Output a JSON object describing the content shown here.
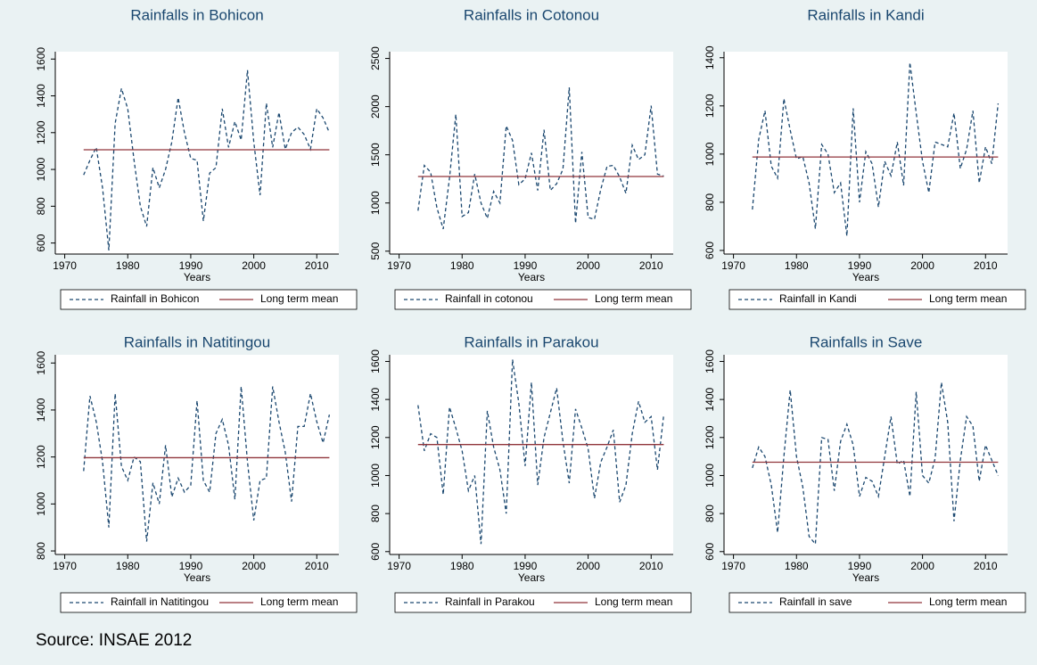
{
  "chart_data": [
    {
      "type": "line",
      "title": "Rainfalls in Bohicon",
      "xlabel": "Years",
      "x": [
        1973,
        1974,
        1975,
        1976,
        1977,
        1978,
        1979,
        1980,
        1981,
        1982,
        1983,
        1984,
        1985,
        1986,
        1987,
        1988,
        1989,
        1990,
        1991,
        1992,
        1993,
        1994,
        1995,
        1996,
        1997,
        1998,
        1999,
        2000,
        2001,
        2002,
        2003,
        2004,
        2005,
        2006,
        2007,
        2008,
        2009,
        2010,
        2011,
        2012
      ],
      "series": [
        {
          "name": "Rainfall in Bohicon",
          "color": "#1a476f",
          "style": "dashed",
          "values": [
            970,
            1050,
            1120,
            900,
            560,
            1250,
            1440,
            1330,
            1050,
            800,
            690,
            1010,
            900,
            1000,
            1150,
            1390,
            1200,
            1060,
            1050,
            720,
            980,
            1010,
            1330,
            1120,
            1260,
            1160,
            1540,
            1150,
            860,
            1360,
            1120,
            1310,
            1110,
            1200,
            1230,
            1190,
            1110,
            1330,
            1280,
            1200
          ]
        },
        {
          "name": "Long term mean",
          "color": "#90353b",
          "style": "solid",
          "values": [
            1107,
            1107,
            1107,
            1107,
            1107,
            1107,
            1107,
            1107,
            1107,
            1107,
            1107,
            1107,
            1107,
            1107,
            1107,
            1107,
            1107,
            1107,
            1107,
            1107,
            1107,
            1107,
            1107,
            1107,
            1107,
            1107,
            1107,
            1107,
            1107,
            1107,
            1107,
            1107,
            1107,
            1107,
            1107,
            1107,
            1107,
            1107,
            1107,
            1107
          ]
        }
      ],
      "xlim": [
        1968.5,
        2013.5
      ],
      "xticks": [
        1970,
        1980,
        1990,
        2000,
        2010
      ],
      "ylim": [
        540,
        1640
      ],
      "yticks": [
        600,
        800,
        1000,
        1200,
        1400,
        1600
      ]
    },
    {
      "type": "line",
      "title": "Rainfalls in Cotonou",
      "xlabel": "Years",
      "x": [
        1973,
        1974,
        1975,
        1976,
        1977,
        1978,
        1979,
        1980,
        1981,
        1982,
        1983,
        1984,
        1985,
        1986,
        1987,
        1988,
        1989,
        1990,
        1991,
        1992,
        1993,
        1994,
        1995,
        1996,
        1997,
        1998,
        1999,
        2000,
        2001,
        2002,
        2003,
        2004,
        2005,
        2006,
        2007,
        2008,
        2009,
        2010,
        2011,
        2012
      ],
      "series": [
        {
          "name": "Rainfall in cotonou",
          "color": "#1a476f",
          "style": "dashed",
          "values": [
            920,
            1390,
            1320,
            950,
            730,
            1260,
            1920,
            860,
            900,
            1300,
            1000,
            840,
            1120,
            1000,
            1800,
            1650,
            1190,
            1250,
            1520,
            1130,
            1760,
            1130,
            1200,
            1350,
            2200,
            790,
            1530,
            850,
            830,
            1140,
            1380,
            1390,
            1270,
            1100,
            1600,
            1450,
            1500,
            2010,
            1300,
            1280
          ]
        },
        {
          "name": "Long term mean",
          "color": "#90353b",
          "style": "solid",
          "values": [
            1275,
            1275,
            1275,
            1275,
            1275,
            1275,
            1275,
            1275,
            1275,
            1275,
            1275,
            1275,
            1275,
            1275,
            1275,
            1275,
            1275,
            1275,
            1275,
            1275,
            1275,
            1275,
            1275,
            1275,
            1275,
            1275,
            1275,
            1275,
            1275,
            1275,
            1275,
            1275,
            1275,
            1275,
            1275,
            1275,
            1275,
            1275,
            1275,
            1275
          ]
        }
      ],
      "xlim": [
        1968.5,
        2013.5
      ],
      "xticks": [
        1970,
        1980,
        1990,
        2000,
        2010
      ],
      "ylim": [
        470,
        2570
      ],
      "yticks": [
        500,
        1000,
        1500,
        2000,
        2500
      ]
    },
    {
      "type": "line",
      "title": "Rainfalls in Kandi",
      "xlabel": "Years",
      "x": [
        1973,
        1974,
        1975,
        1976,
        1977,
        1978,
        1979,
        1980,
        1981,
        1982,
        1983,
        1984,
        1985,
        1986,
        1987,
        1988,
        1989,
        1990,
        1991,
        1992,
        1993,
        1994,
        1995,
        1996,
        1997,
        1998,
        1999,
        2000,
        2001,
        2002,
        2003,
        2004,
        2005,
        2006,
        2007,
        2008,
        2009,
        2010,
        2011,
        2012
      ],
      "series": [
        {
          "name": "Rainfall in Kandi",
          "color": "#1a476f",
          "style": "dashed",
          "values": [
            770,
            1060,
            1180,
            950,
            900,
            1230,
            1100,
            980,
            990,
            880,
            690,
            1040,
            1000,
            840,
            880,
            660,
            1190,
            800,
            1010,
            960,
            780,
            970,
            910,
            1050,
            870,
            1380,
            1170,
            970,
            840,
            1050,
            1040,
            1030,
            1170,
            940,
            1020,
            1180,
            880,
            1030,
            960,
            1210
          ]
        },
        {
          "name": "Long term mean",
          "color": "#90353b",
          "style": "solid",
          "values": [
            988,
            988,
            988,
            988,
            988,
            988,
            988,
            988,
            988,
            988,
            988,
            988,
            988,
            988,
            988,
            988,
            988,
            988,
            988,
            988,
            988,
            988,
            988,
            988,
            988,
            988,
            988,
            988,
            988,
            988,
            988,
            988,
            988,
            988,
            988,
            988,
            988,
            988,
            988,
            988
          ]
        }
      ],
      "xlim": [
        1968.5,
        2013.5
      ],
      "xticks": [
        1970,
        1980,
        1990,
        2000,
        2010
      ],
      "ylim": [
        585,
        1425
      ],
      "yticks": [
        600,
        800,
        1000,
        1200,
        1400
      ]
    },
    {
      "type": "line",
      "title": "Rainfalls in Natitingou",
      "xlabel": "Years",
      "x": [
        1973,
        1974,
        1975,
        1976,
        1977,
        1978,
        1979,
        1980,
        1981,
        1982,
        1983,
        1984,
        1985,
        1986,
        1987,
        1988,
        1989,
        1990,
        1991,
        1992,
        1993,
        1994,
        1995,
        1996,
        1997,
        1998,
        1999,
        2000,
        2001,
        2002,
        2003,
        2004,
        2005,
        2006,
        2007,
        2008,
        2009,
        2010,
        2011,
        2012
      ],
      "series": [
        {
          "name": "Rainfall in Natitingou",
          "color": "#1a476f",
          "style": "dashed",
          "values": [
            1140,
            1460,
            1350,
            1180,
            900,
            1470,
            1160,
            1100,
            1200,
            1180,
            840,
            1090,
            1000,
            1250,
            1030,
            1110,
            1050,
            1080,
            1440,
            1100,
            1050,
            1300,
            1360,
            1250,
            1020,
            1500,
            1180,
            930,
            1100,
            1110,
            1500,
            1350,
            1220,
            1010,
            1330,
            1330,
            1470,
            1350,
            1260,
            1380
          ]
        },
        {
          "name": "Long term mean",
          "color": "#90353b",
          "style": "solid",
          "values": [
            1197,
            1197,
            1197,
            1197,
            1197,
            1197,
            1197,
            1197,
            1197,
            1197,
            1197,
            1197,
            1197,
            1197,
            1197,
            1197,
            1197,
            1197,
            1197,
            1197,
            1197,
            1197,
            1197,
            1197,
            1197,
            1197,
            1197,
            1197,
            1197,
            1197,
            1197,
            1197,
            1197,
            1197,
            1197,
            1197,
            1197,
            1197,
            1197,
            1197
          ]
        }
      ],
      "xlim": [
        1968.5,
        2013.5
      ],
      "xticks": [
        1970,
        1980,
        1990,
        2000,
        2010
      ],
      "ylim": [
        785,
        1635
      ],
      "yticks": [
        800,
        1000,
        1200,
        1400,
        1600
      ]
    },
    {
      "type": "line",
      "title": "Rainfalls in Parakou",
      "xlabel": "Years",
      "x": [
        1973,
        1974,
        1975,
        1976,
        1977,
        1978,
        1979,
        1980,
        1981,
        1982,
        1983,
        1984,
        1985,
        1986,
        1987,
        1988,
        1989,
        1990,
        1991,
        1992,
        1993,
        1994,
        1995,
        1996,
        1997,
        1998,
        1999,
        2000,
        2001,
        2002,
        2003,
        2004,
        2005,
        2006,
        2007,
        2008,
        2009,
        2010,
        2011,
        2012
      ],
      "series": [
        {
          "name": "Rainfall in Parakou",
          "color": "#1a476f",
          "style": "dashed",
          "values": [
            1370,
            1130,
            1220,
            1200,
            900,
            1360,
            1250,
            1130,
            920,
            1000,
            640,
            1340,
            1150,
            1030,
            800,
            1610,
            1380,
            1050,
            1490,
            950,
            1200,
            1330,
            1460,
            1180,
            960,
            1350,
            1250,
            1140,
            880,
            1070,
            1150,
            1240,
            860,
            950,
            1220,
            1390,
            1280,
            1310,
            1030,
            1320
          ]
        },
        {
          "name": "Long term mean",
          "color": "#90353b",
          "style": "solid",
          "values": [
            1163,
            1163,
            1163,
            1163,
            1163,
            1163,
            1163,
            1163,
            1163,
            1163,
            1163,
            1163,
            1163,
            1163,
            1163,
            1163,
            1163,
            1163,
            1163,
            1163,
            1163,
            1163,
            1163,
            1163,
            1163,
            1163,
            1163,
            1163,
            1163,
            1163,
            1163,
            1163,
            1163,
            1163,
            1163,
            1163,
            1163,
            1163,
            1163,
            1163
          ]
        }
      ],
      "xlim": [
        1968.5,
        2013.5
      ],
      "xticks": [
        1970,
        1980,
        1990,
        2000,
        2010
      ],
      "ylim": [
        585,
        1635
      ],
      "yticks": [
        600,
        800,
        1000,
        1200,
        1400,
        1600
      ]
    },
    {
      "type": "line",
      "title": "Rainfalls in Save",
      "xlabel": "Years",
      "x": [
        1973,
        1974,
        1975,
        1976,
        1977,
        1978,
        1979,
        1980,
        1981,
        1982,
        1983,
        1984,
        1985,
        1986,
        1987,
        1988,
        1989,
        1990,
        1991,
        1992,
        1993,
        1994,
        1995,
        1996,
        1997,
        1998,
        1999,
        2000,
        2001,
        2002,
        2003,
        2004,
        2005,
        2006,
        2007,
        2008,
        2009,
        2010,
        2011,
        2012
      ],
      "series": [
        {
          "name": "Rainfall in save",
          "color": "#1a476f",
          "style": "dashed",
          "values": [
            1040,
            1150,
            1100,
            950,
            700,
            1100,
            1450,
            1100,
            940,
            680,
            640,
            1200,
            1190,
            920,
            1180,
            1270,
            1160,
            890,
            990,
            970,
            890,
            1100,
            1310,
            1060,
            1080,
            890,
            1440,
            1000,
            960,
            1090,
            1490,
            1280,
            760,
            1080,
            1310,
            1260,
            970,
            1160,
            1080,
            1000
          ]
        },
        {
          "name": "Long term mean",
          "color": "#90353b",
          "style": "solid",
          "values": [
            1070,
            1070,
            1070,
            1070,
            1070,
            1070,
            1070,
            1070,
            1070,
            1070,
            1070,
            1070,
            1070,
            1070,
            1070,
            1070,
            1070,
            1070,
            1070,
            1070,
            1070,
            1070,
            1070,
            1070,
            1070,
            1070,
            1070,
            1070,
            1070,
            1070,
            1070,
            1070,
            1070,
            1070,
            1070,
            1070,
            1070,
            1070,
            1070,
            1070
          ]
        }
      ],
      "xlim": [
        1968.5,
        2013.5
      ],
      "xticks": [
        1970,
        1980,
        1990,
        2000,
        2010
      ],
      "ylim": [
        585,
        1635
      ],
      "yticks": [
        600,
        800,
        1000,
        1200,
        1400,
        1600
      ]
    }
  ],
  "source": "Source: INSAE 2012"
}
